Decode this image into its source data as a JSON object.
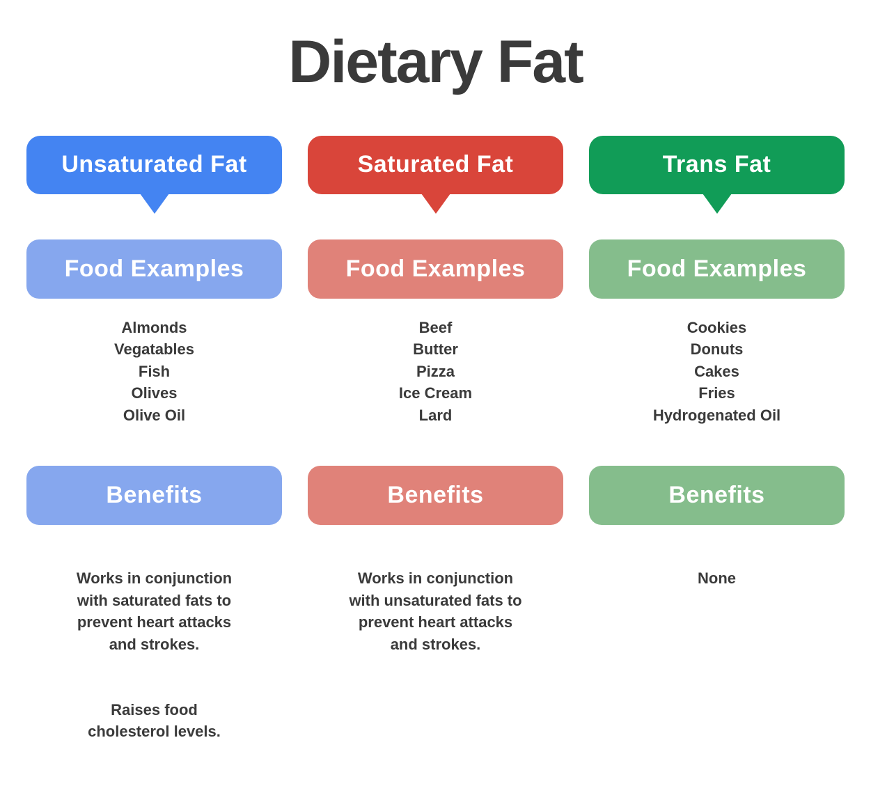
{
  "title": "Dietary Fat",
  "text_color": "#3A3A3A",
  "columns": [
    {
      "header": "Unsaturated Fat",
      "food_examples_label": "Food Examples",
      "foods": [
        "Almonds",
        "Vegatables",
        "Fish",
        "Olives",
        "Olive Oil"
      ],
      "benefits_label": "Benefits",
      "benefits": [
        "Works in conjunction\nwith saturated fats to\nprevent heart attacks\nand strokes.",
        "Raises food\ncholesterol levels."
      ],
      "colors": {
        "primary": "#4484F2",
        "light": "#86A7EE"
      }
    },
    {
      "header": "Saturated Fat",
      "food_examples_label": "Food Examples",
      "foods": [
        "Beef",
        "Butter",
        "Pizza",
        "Ice Cream",
        "Lard"
      ],
      "benefits_label": "Benefits",
      "benefits": [
        "Works in conjunction\nwith unsaturated fats to\nprevent heart attacks\nand strokes."
      ],
      "colors": {
        "primary": "#D9453A",
        "light": "#E08279"
      }
    },
    {
      "header": "Trans Fat",
      "food_examples_label": "Food Examples",
      "foods": [
        "Cookies",
        "Donuts",
        "Cakes",
        "Fries",
        "Hydrogenated Oil"
      ],
      "benefits_label": "Benefits",
      "benefits": [
        "None"
      ],
      "colors": {
        "primary": "#119C57",
        "light": "#85BD8C"
      }
    }
  ]
}
